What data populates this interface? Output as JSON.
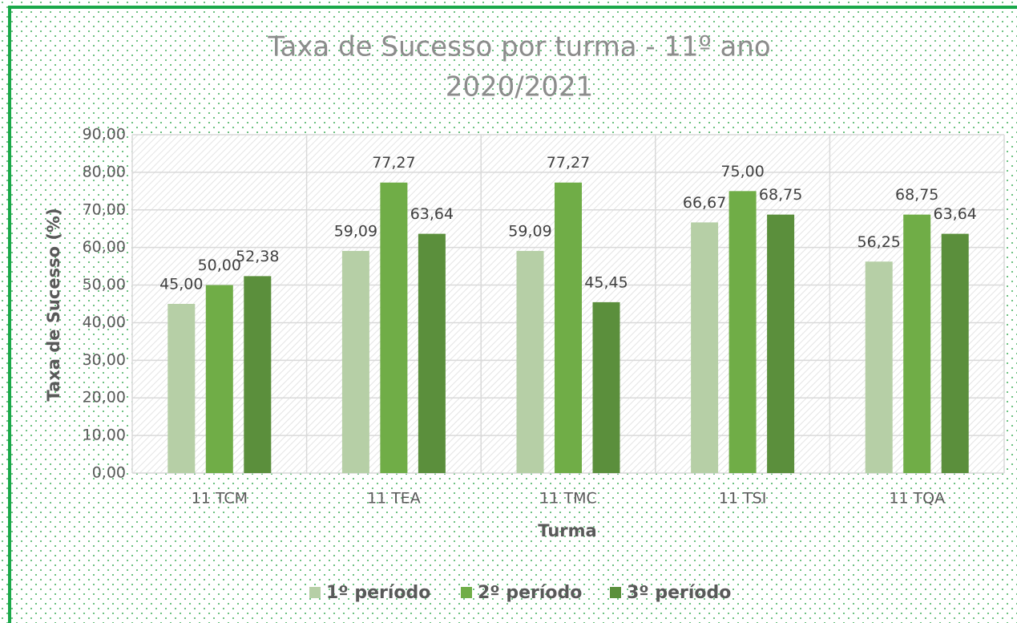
{
  "chart_data": {
    "type": "bar",
    "title": [
      "Taxa de Sucesso por turma - 11º ano",
      "2020/2021"
    ],
    "x_label": "Turma",
    "y_label": "Taxa de Sucesso (%)",
    "categories": [
      "11 TCM",
      "11 TEA",
      "11 TMC",
      "11 TSI",
      "11 TQA"
    ],
    "series": [
      {
        "name": "1º período",
        "color": "#b6cfa6",
        "values": [
          45.0,
          59.09,
          59.09,
          66.67,
          56.25
        ],
        "value_labels": [
          "45,00",
          "59,09",
          "59,09",
          "66,67",
          "56,25"
        ]
      },
      {
        "name": "2º período",
        "color": "#70ad47",
        "values": [
          50.0,
          77.27,
          77.27,
          75.0,
          68.75
        ],
        "value_labels": [
          "50,00",
          "77,27",
          "77,27",
          "75,00",
          "68,75"
        ]
      },
      {
        "name": "3º período",
        "color": "#5b8f3c",
        "values": [
          52.38,
          63.64,
          45.45,
          68.75,
          63.64
        ],
        "value_labels": [
          "52,38",
          "63,64",
          "45,45",
          "68,75",
          "63,64"
        ]
      }
    ],
    "ylim": [
      0,
      90
    ],
    "yticks": [
      {
        "value": 0,
        "label": "0,00"
      },
      {
        "value": 10,
        "label": "10,00"
      },
      {
        "value": 20,
        "label": "20,00"
      },
      {
        "value": 30,
        "label": "30,00"
      },
      {
        "value": 40,
        "label": "40,00"
      },
      {
        "value": 50,
        "label": "50,00"
      },
      {
        "value": 60,
        "label": "60,00"
      },
      {
        "value": 70,
        "label": "70,00"
      },
      {
        "value": 80,
        "label": "80,00"
      },
      {
        "value": 90,
        "label": "90,00"
      }
    ],
    "grid": true,
    "legend": "bottom"
  }
}
